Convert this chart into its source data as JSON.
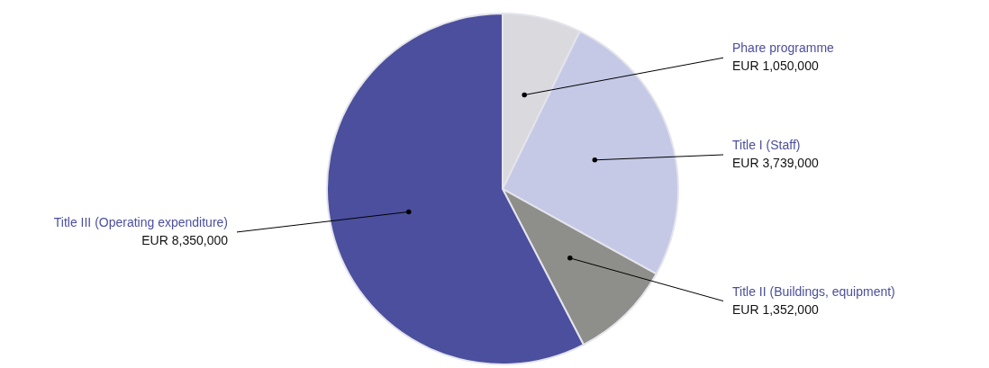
{
  "chart_data": {
    "type": "pie",
    "categories": [
      "Phare programme",
      "Title I (Staff)",
      "Title II (Buildings, equipment)",
      "Title III (Operating expenditure)"
    ],
    "values": [
      1050000,
      3739000,
      1352000,
      8350000
    ],
    "colors": [
      "#d9d9de",
      "#c5c9e6",
      "#8e8e8a",
      "#4b4f9e"
    ],
    "value_labels": [
      "EUR  1,050,000",
      "EUR  3,739,000",
      "EUR  1,352,000",
      "EUR  8,350,000"
    ]
  }
}
